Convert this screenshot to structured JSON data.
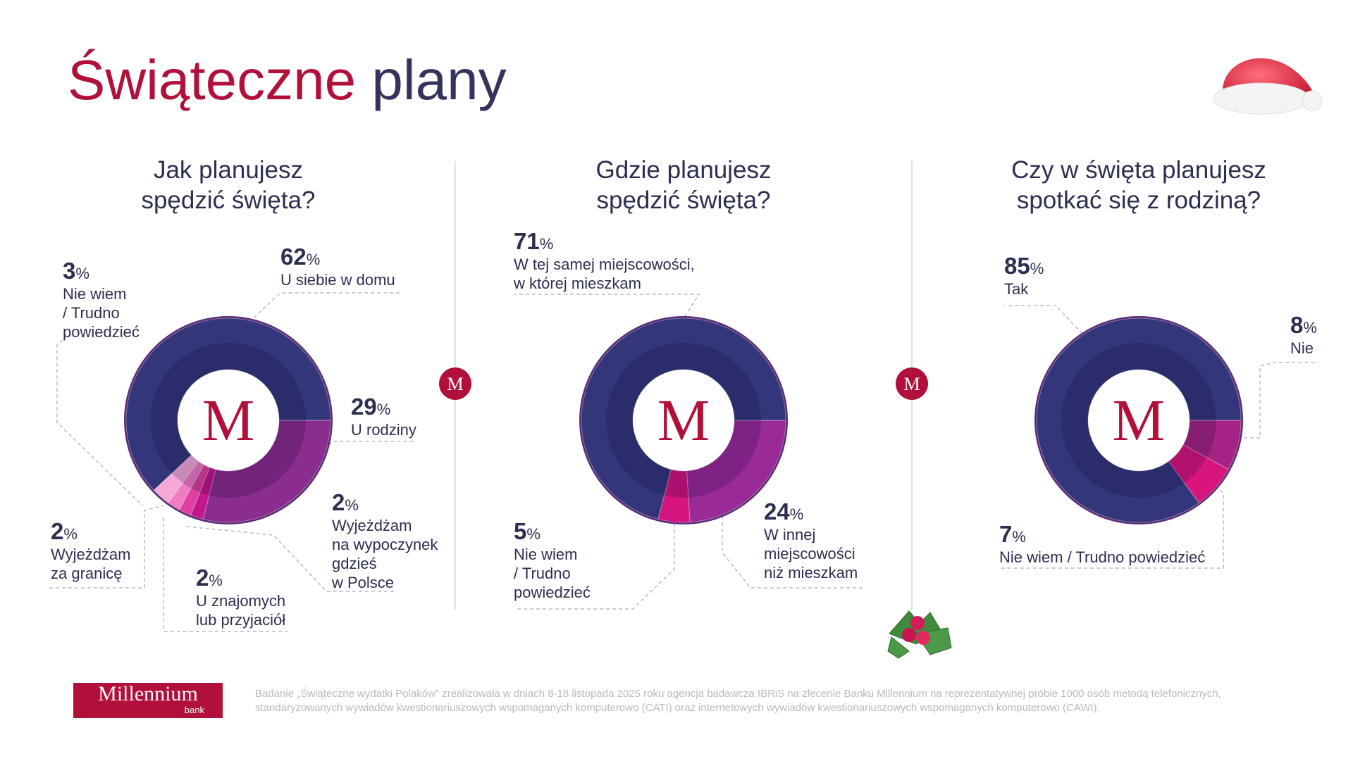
{
  "header": {
    "title_red": "Świąteczne",
    "title_dark": "plany"
  },
  "chart_data": [
    {
      "type": "donut",
      "title": "Jak planujesz\nspędzić święta?",
      "unit": "%",
      "categories": [
        "U rodziny",
        "Wyjeżdżam\nna wypoczynek\ngdzieś\nw Polsce",
        "U znajomych\nlub przyjaciół",
        "Wyjeżdżam\nza granicę",
        "Nie wiem\n/ Trudno\npowiedzieć",
        "U siebie w domu"
      ],
      "values": [
        29,
        2,
        2,
        2,
        3,
        62
      ],
      "colors": [
        "#8b2d8e",
        "#c4158a",
        "#e0409f",
        "#f07cc4",
        "#f6a9d8",
        "#34367a"
      ]
    },
    {
      "type": "donut",
      "title": "Gdzie planujesz\nspędzić święta?",
      "unit": "%",
      "categories": [
        "W innej\nmiejscowości\nniż mieszkam",
        "Nie wiem\n/ Trudno\npowiedzieć",
        "W tej samej miejscowości,\nw której mieszkam"
      ],
      "values": [
        24,
        5,
        71
      ],
      "colors": [
        "#9a2a98",
        "#d4157f",
        "#34367a"
      ]
    },
    {
      "type": "donut",
      "title": "Czy w święta planujesz\nspotkać się z rodziną?",
      "unit": "%",
      "categories": [
        "Nie",
        "Nie wiem / Trudno powiedzieć",
        "Tak"
      ],
      "values": [
        8,
        7,
        85
      ],
      "colors": [
        "#a52384",
        "#d8157c",
        "#34367a"
      ]
    }
  ],
  "footer": {
    "logo_name": "Millennium",
    "logo_sub": "bank",
    "note": "Badanie „Świąteczne wydatki Polaków” zrealizowała w dniach 8-18 listopada 2025 roku agencja badawcza IBRiS na zlecenie Banku Millennium na reprezentatywnej próbie 1000 osób metodą telefonicznych, standaryzowanych wywiadów kwestionariuszowych wspomaganych komputerowo (CATI) oraz internetowych wywiadów kwestionariuszowych wspomaganych komputerowo (CAWI)."
  }
}
